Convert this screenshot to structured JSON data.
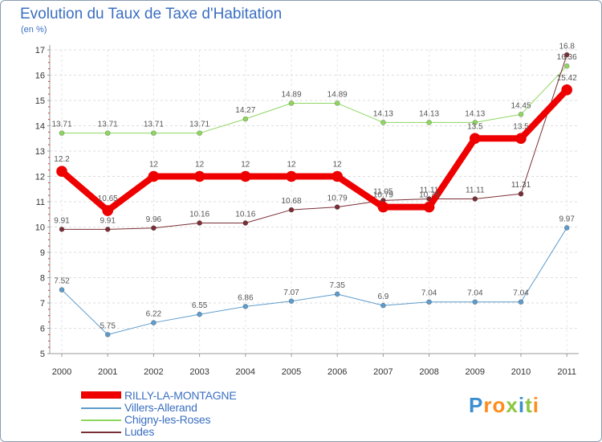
{
  "header": {
    "title": "Evolution du Taux de Taxe d'Habitation",
    "subtitle": "(en %)"
  },
  "branding": {
    "letters": [
      "P",
      "r",
      "o",
      "x",
      "i",
      "t",
      "i"
    ],
    "colors": [
      "#3a8fd0",
      "#ff8c1a",
      "#ff8c1a",
      "#8cc63f",
      "#3a8fd0",
      "#8cc63f",
      "#ff8c1a"
    ]
  },
  "chart_data": {
    "type": "line",
    "title": "Evolution du Taux de Taxe d'Habitation",
    "ylabel": "(en %)",
    "xlabel": "",
    "categories": [
      "2000",
      "2001",
      "2002",
      "2003",
      "2004",
      "2005",
      "2006",
      "2007",
      "2008",
      "2009",
      "2010",
      "2011"
    ],
    "ylim": [
      5,
      17
    ],
    "yticks": [
      "5",
      "6",
      "7",
      "8",
      "9",
      "10",
      "11",
      "12",
      "13",
      "14",
      "15",
      "16",
      "17"
    ],
    "grid": true,
    "legend_position": "bottom-left",
    "series": [
      {
        "name": "RILLY-LA-MONTAGNE",
        "color": "#ee0000",
        "emphasis": true,
        "values": [
          12.2,
          10.65,
          12,
          12,
          12,
          12,
          12,
          10.79,
          10.79,
          13.5,
          13.5,
          15.42
        ],
        "labels": [
          "12.2",
          "10.65",
          "12",
          "12",
          "12",
          "12",
          "12",
          "10.79",
          "10.79",
          "13.5",
          "13.5",
          "15.42"
        ]
      },
      {
        "name": "Villers-Allerand",
        "color": "#5e9ccc",
        "emphasis": false,
        "values": [
          7.52,
          5.75,
          6.22,
          6.55,
          6.86,
          7.07,
          7.35,
          6.9,
          7.04,
          7.04,
          7.04,
          9.97
        ],
        "labels": [
          "7.52",
          "5.75",
          "6.22",
          "6.55",
          "6.86",
          "7.07",
          "7.35",
          "6.9",
          "7.04",
          "7.04",
          "7.04",
          "9.97"
        ]
      },
      {
        "name": "Chigny-les-Roses",
        "color": "#8fd660",
        "emphasis": false,
        "values": [
          13.71,
          13.71,
          13.71,
          13.71,
          14.27,
          14.89,
          14.89,
          14.13,
          14.13,
          14.13,
          14.45,
          16.36
        ],
        "labels": [
          "13.71",
          "13.71",
          "13.71",
          "13.71",
          "14.27",
          "14.89",
          "14.89",
          "14.13",
          "14.13",
          "14.13",
          "14.45",
          "16.36"
        ]
      },
      {
        "name": "Ludes",
        "color": "#7a2e35",
        "emphasis": false,
        "values": [
          9.91,
          9.91,
          9.96,
          10.16,
          10.16,
          10.68,
          10.79,
          11.05,
          11.11,
          11.11,
          11.31,
          16.8
        ],
        "labels": [
          "9.91",
          "9.91",
          "9.96",
          "10.16",
          "10.16",
          "10.68",
          "10.79",
          "11.05",
          "11.11",
          "11.11",
          "11.31",
          "16.8"
        ]
      }
    ]
  }
}
